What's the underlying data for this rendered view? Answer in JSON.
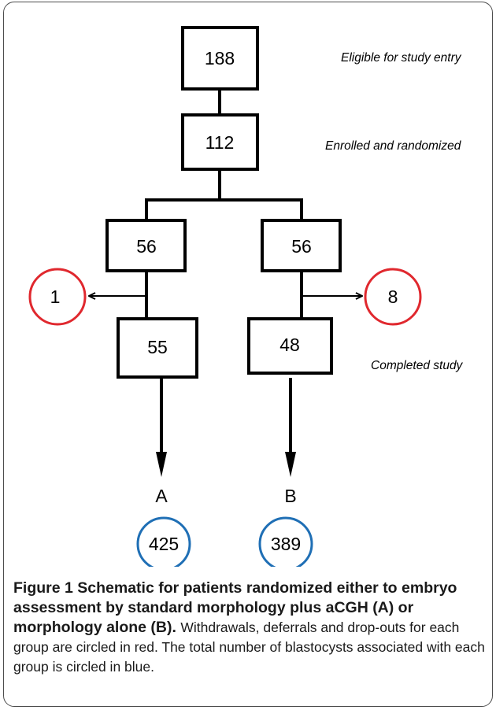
{
  "diagram": {
    "boxes": {
      "eligible": "188",
      "enrolled": "112",
      "group_a_randomized": "56",
      "group_b_randomized": "56",
      "group_a_completed": "55",
      "group_b_completed": "48"
    },
    "dropouts": {
      "group_a": "1",
      "group_b": "8"
    },
    "stage_labels": {
      "eligible": "Eligible for study entry",
      "enrolled": "Enrolled and randomized",
      "completed": "Completed study"
    },
    "group_labels": {
      "a": "A",
      "b": "B"
    },
    "blastocysts": {
      "group_a": "425",
      "group_b": "389"
    },
    "colors": {
      "dropout_circle": "#e0282e",
      "blastocyst_circle": "#1f6fb5"
    }
  },
  "caption": {
    "title": "Figure 1 Schematic for patients randomized either to embryo assessment by standard morphology plus aCGH (A) or morphology alone (B).",
    "text": "Withdrawals, deferrals and drop-outs for each group are circled in red. The total number of blastocysts associated with each group is circled in blue."
  }
}
